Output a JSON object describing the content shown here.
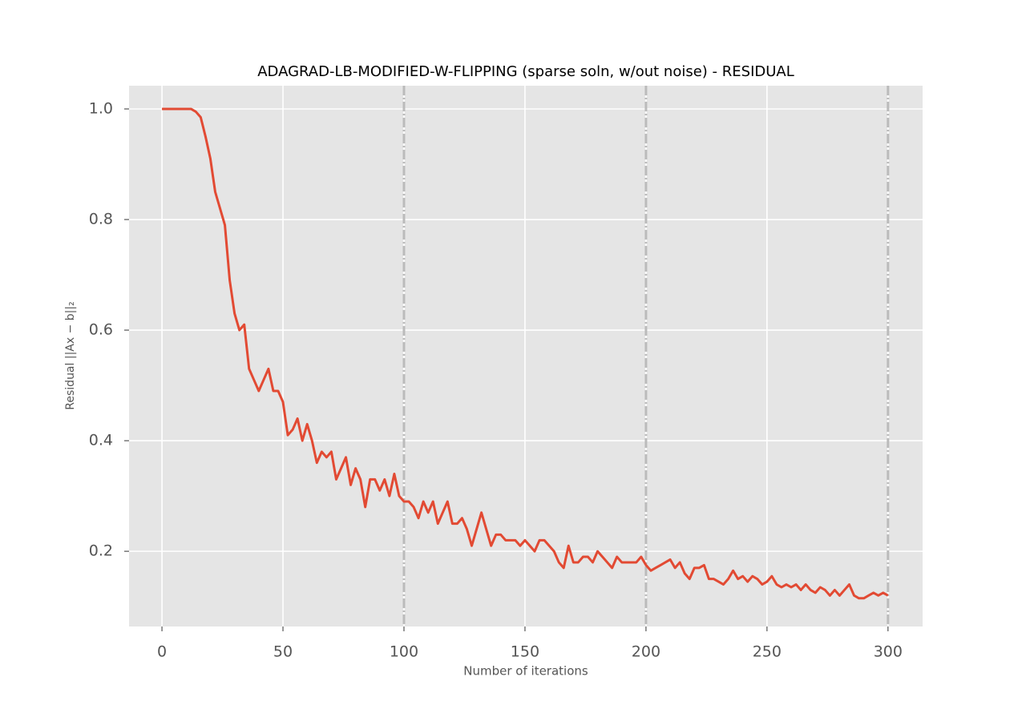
{
  "chart_data": {
    "type": "line",
    "title": "ADAGRAD-LB-MODIFIED-W-FLIPPING (sparse soln, w/out noise) - RESIDUAL",
    "xlabel": "Number of iterations",
    "ylabel": "Residual ||Ax − b||₂",
    "x": [
      0,
      2,
      4,
      6,
      8,
      10,
      12,
      14,
      16,
      18,
      20,
      22,
      24,
      26,
      28,
      30,
      32,
      34,
      36,
      38,
      40,
      42,
      44,
      46,
      48,
      50,
      52,
      54,
      56,
      58,
      60,
      62,
      64,
      66,
      68,
      70,
      72,
      74,
      76,
      78,
      80,
      82,
      84,
      86,
      88,
      90,
      92,
      94,
      96,
      98,
      100,
      102,
      104,
      106,
      108,
      110,
      112,
      114,
      116,
      118,
      120,
      122,
      124,
      126,
      128,
      130,
      132,
      134,
      136,
      138,
      140,
      142,
      144,
      146,
      148,
      150,
      152,
      154,
      156,
      158,
      160,
      162,
      164,
      166,
      168,
      170,
      172,
      174,
      176,
      178,
      180,
      182,
      184,
      186,
      188,
      190,
      192,
      194,
      196,
      198,
      200,
      202,
      204,
      206,
      208,
      210,
      212,
      214,
      216,
      218,
      220,
      222,
      224,
      226,
      228,
      230,
      232,
      234,
      236,
      238,
      240,
      242,
      244,
      246,
      248,
      250,
      252,
      254,
      256,
      258,
      260,
      262,
      264,
      266,
      268,
      270,
      272,
      274,
      276,
      278,
      280,
      282,
      284,
      286,
      288,
      290,
      292,
      294,
      296,
      298,
      300
    ],
    "series": [
      {
        "name": "residual",
        "color": "#E24A33",
        "values": [
          1.0,
          1.0,
          1.0,
          1.0,
          1.0,
          1.0,
          1.0,
          0.995,
          0.985,
          0.95,
          0.91,
          0.85,
          0.82,
          0.79,
          0.69,
          0.63,
          0.6,
          0.61,
          0.53,
          0.51,
          0.49,
          0.51,
          0.53,
          0.49,
          0.49,
          0.47,
          0.41,
          0.42,
          0.44,
          0.4,
          0.43,
          0.4,
          0.36,
          0.38,
          0.37,
          0.38,
          0.33,
          0.35,
          0.37,
          0.32,
          0.35,
          0.33,
          0.28,
          0.33,
          0.33,
          0.31,
          0.33,
          0.3,
          0.34,
          0.3,
          0.29,
          0.29,
          0.28,
          0.26,
          0.29,
          0.27,
          0.29,
          0.25,
          0.27,
          0.29,
          0.25,
          0.25,
          0.26,
          0.24,
          0.21,
          0.24,
          0.27,
          0.24,
          0.21,
          0.23,
          0.23,
          0.22,
          0.22,
          0.22,
          0.21,
          0.22,
          0.21,
          0.2,
          0.22,
          0.22,
          0.21,
          0.2,
          0.18,
          0.17,
          0.21,
          0.18,
          0.18,
          0.19,
          0.19,
          0.18,
          0.2,
          0.19,
          0.18,
          0.17,
          0.19,
          0.18,
          0.18,
          0.18,
          0.18,
          0.19,
          0.175,
          0.165,
          0.17,
          0.175,
          0.18,
          0.185,
          0.17,
          0.18,
          0.16,
          0.15,
          0.17,
          0.17,
          0.175,
          0.15,
          0.15,
          0.145,
          0.14,
          0.15,
          0.165,
          0.15,
          0.155,
          0.145,
          0.155,
          0.15,
          0.14,
          0.145,
          0.155,
          0.14,
          0.135,
          0.14,
          0.135,
          0.14,
          0.13,
          0.14,
          0.13,
          0.125,
          0.135,
          0.13,
          0.12,
          0.13,
          0.12,
          0.13,
          0.14,
          0.12,
          0.115,
          0.115,
          0.12,
          0.125,
          0.12,
          0.125,
          0.12
        ]
      }
    ],
    "vlines": [
      100,
      200,
      300
    ],
    "xlim": [
      -13.6,
      314.3
    ],
    "xticks": [
      0,
      50,
      100,
      150,
      200,
      250,
      300
    ],
    "ylim": [
      0.064,
      1.042
    ],
    "yticks": [
      {
        "value": 0.2,
        "label": "0.2"
      },
      {
        "value": 0.4,
        "label": "0.4"
      },
      {
        "value": 0.6,
        "label": "0.6"
      },
      {
        "value": 0.8,
        "label": "0.8"
      },
      {
        "value": 1.0,
        "label": "1.0"
      }
    ],
    "grid": true
  }
}
